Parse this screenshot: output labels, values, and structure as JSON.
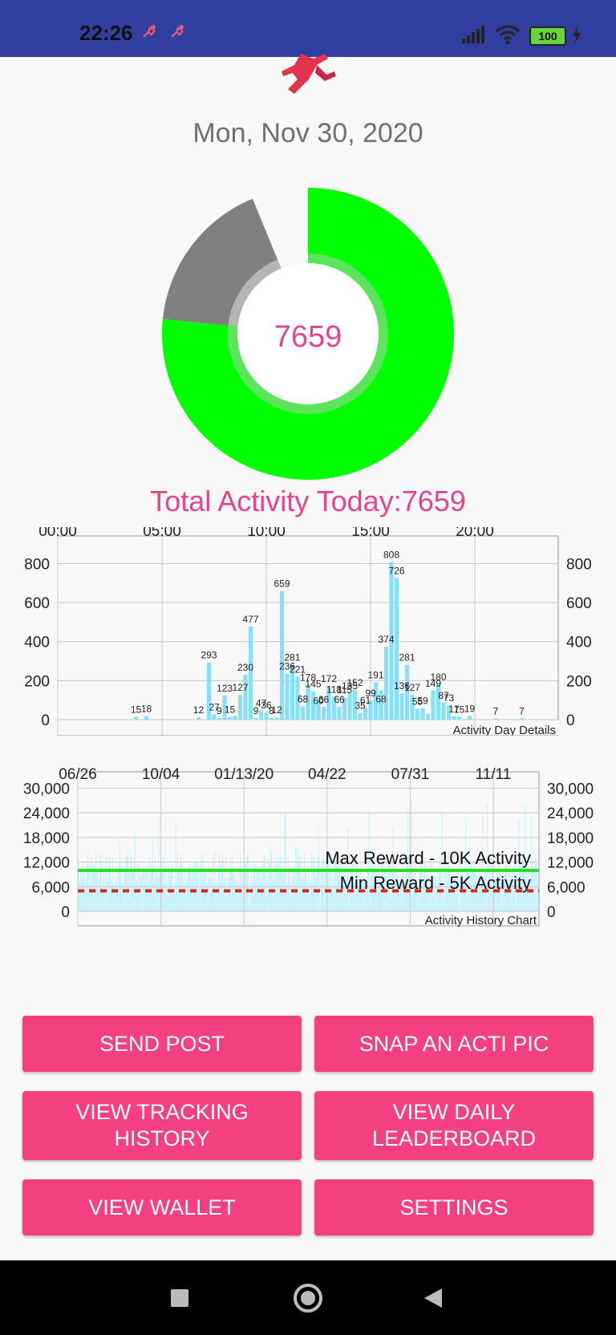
{
  "status_bar": {
    "time": "22:26",
    "battery": "100"
  },
  "header": {
    "date": "Mon, Nov 30, 2020"
  },
  "gauge": {
    "value": "7659",
    "progress_fraction": 0.766,
    "colors": {
      "progress": "#00ff00",
      "remainder": "#808080",
      "text": "#e6448a"
    }
  },
  "total_label": "Total Activity Today:7659",
  "charts": {
    "day": {
      "caption": "Activity Day Details",
      "time_ticks": [
        "00:00",
        "05:00",
        "10:00",
        "15:00",
        "20:00"
      ],
      "y_ticks": [
        "0",
        "200",
        "400",
        "600",
        "800"
      ]
    },
    "history": {
      "caption": "Activity History Chart",
      "date_ticks": [
        "06/26",
        "10/04",
        "01/13/20",
        "04/22",
        "07/31",
        "11/11"
      ],
      "y_ticks": [
        "0",
        "6,000",
        "12,000",
        "18,000",
        "24,000",
        "30,000"
      ],
      "max_reward_label": "Max Reward - 10K Activity",
      "min_reward_label": "Min Reward - 5K Activity"
    }
  },
  "chart_data": [
    {
      "type": "bar",
      "caption": "Activity Day Details",
      "xlabel": "",
      "ylabel": "",
      "xlim": [
        0,
        24
      ],
      "ylim": [
        0,
        880
      ],
      "x_ticks": [
        "00:00",
        "05:00",
        "10:00",
        "15:00",
        "20:00"
      ],
      "grid": true,
      "bar_color": "#87e0f5",
      "labels": [
        {
          "x": 3.75,
          "y": 15,
          "text": "15"
        },
        {
          "x": 4.25,
          "y": 18,
          "text": "18"
        },
        {
          "x": 6.75,
          "y": 12,
          "text": "12"
        },
        {
          "x": 7.25,
          "y": 293,
          "text": "293"
        },
        {
          "x": 7.5,
          "y": 27,
          "text": "27"
        },
        {
          "x": 7.75,
          "y": 9,
          "text": "9"
        },
        {
          "x": 8.0,
          "y": 123,
          "text": "123"
        },
        {
          "x": 8.25,
          "y": 15,
          "text": "15"
        },
        {
          "x": 8.75,
          "y": 127,
          "text": "127"
        },
        {
          "x": 9.0,
          "y": 230,
          "text": "230"
        },
        {
          "x": 9.25,
          "y": 477,
          "text": "477"
        },
        {
          "x": 9.5,
          "y": 9,
          "text": "9"
        },
        {
          "x": 9.75,
          "y": 47,
          "text": "47"
        },
        {
          "x": 10.0,
          "y": 36,
          "text": "36"
        },
        {
          "x": 10.25,
          "y": 8,
          "text": "8"
        },
        {
          "x": 10.5,
          "y": 12,
          "text": "12"
        },
        {
          "x": 10.75,
          "y": 659,
          "text": "659"
        },
        {
          "x": 11.0,
          "y": 236,
          "text": "236"
        },
        {
          "x": 11.25,
          "y": 281,
          "text": "281"
        },
        {
          "x": 11.5,
          "y": 221,
          "text": "221"
        },
        {
          "x": 11.75,
          "y": 68,
          "text": "68"
        },
        {
          "x": 12.0,
          "y": 178,
          "text": "178"
        },
        {
          "x": 12.25,
          "y": 145,
          "text": "145"
        },
        {
          "x": 12.5,
          "y": 60,
          "text": "60"
        },
        {
          "x": 12.75,
          "y": 66,
          "text": "66"
        },
        {
          "x": 13.0,
          "y": 172,
          "text": "172"
        },
        {
          "x": 13.25,
          "y": 118,
          "text": "118"
        },
        {
          "x": 13.5,
          "y": 66,
          "text": "66"
        },
        {
          "x": 13.75,
          "y": 115,
          "text": "115"
        },
        {
          "x": 14.0,
          "y": 135,
          "text": "135"
        },
        {
          "x": 14.25,
          "y": 152,
          "text": "152"
        },
        {
          "x": 14.5,
          "y": 35,
          "text": "35"
        },
        {
          "x": 14.75,
          "y": 61,
          "text": "61"
        },
        {
          "x": 15.0,
          "y": 99,
          "text": "99"
        },
        {
          "x": 15.25,
          "y": 191,
          "text": "191"
        },
        {
          "x": 15.5,
          "y": 68,
          "text": "68"
        },
        {
          "x": 15.75,
          "y": 374,
          "text": "374"
        },
        {
          "x": 16.0,
          "y": 808,
          "text": "808"
        },
        {
          "x": 16.25,
          "y": 726,
          "text": "726"
        },
        {
          "x": 16.5,
          "y": 136,
          "text": "136"
        },
        {
          "x": 16.75,
          "y": 281,
          "text": "281"
        },
        {
          "x": 17.0,
          "y": 127,
          "text": "127"
        },
        {
          "x": 17.25,
          "y": 55,
          "text": "55"
        },
        {
          "x": 17.5,
          "y": 59,
          "text": "59"
        },
        {
          "x": 18.0,
          "y": 149,
          "text": "149"
        },
        {
          "x": 18.25,
          "y": 180,
          "text": "180"
        },
        {
          "x": 18.5,
          "y": 87,
          "text": "87"
        },
        {
          "x": 18.75,
          "y": 73,
          "text": "73"
        },
        {
          "x": 19.0,
          "y": 17,
          "text": "17"
        },
        {
          "x": 19.25,
          "y": 15,
          "text": "15"
        },
        {
          "x": 19.75,
          "y": 19,
          "text": "19"
        },
        {
          "x": 21.0,
          "y": 7,
          "text": "7"
        },
        {
          "x": 22.25,
          "y": 7,
          "text": "7"
        }
      ],
      "extra_bars": [
        {
          "x": 8.5,
          "y": 20
        },
        {
          "x": 12.5,
          "y": 100
        },
        {
          "x": 13.0,
          "y": 70
        },
        {
          "x": 15.5,
          "y": 150
        },
        {
          "x": 17.75,
          "y": 30
        }
      ]
    },
    {
      "type": "bar",
      "caption": "Activity History Chart",
      "x_ticks": [
        "06/26",
        "10/04",
        "01/13/20",
        "04/22",
        "07/31",
        "11/11"
      ],
      "ylim": [
        0,
        34000
      ],
      "y_ticks": [
        0,
        6000,
        12000,
        18000,
        24000,
        30000
      ],
      "grid": true,
      "bar_color": "#bdf0fa",
      "daily_value_range": [
        1000,
        33000
      ],
      "typical_value": 11000,
      "reference_lines": [
        {
          "name": "Max Reward - 10K Activity",
          "value": 10000,
          "color": "#22dd22",
          "style": "solid"
        },
        {
          "name": "Min Reward - 5K Activity",
          "value": 5000,
          "color": "#dd2222",
          "style": "dashed"
        }
      ]
    }
  ],
  "buttons": [
    {
      "id": "send-post",
      "label": "SEND POST"
    },
    {
      "id": "snap-acti-pic",
      "label": "SNAP AN ACTI PIC"
    },
    {
      "id": "view-tracking-history",
      "label": "VIEW TRACKING\nHISTORY"
    },
    {
      "id": "view-daily-leaderboard",
      "label": "VIEW DAILY\nLEADERBOARD"
    },
    {
      "id": "view-wallet",
      "label": "VIEW WALLET"
    },
    {
      "id": "settings",
      "label": "SETTINGS"
    }
  ]
}
